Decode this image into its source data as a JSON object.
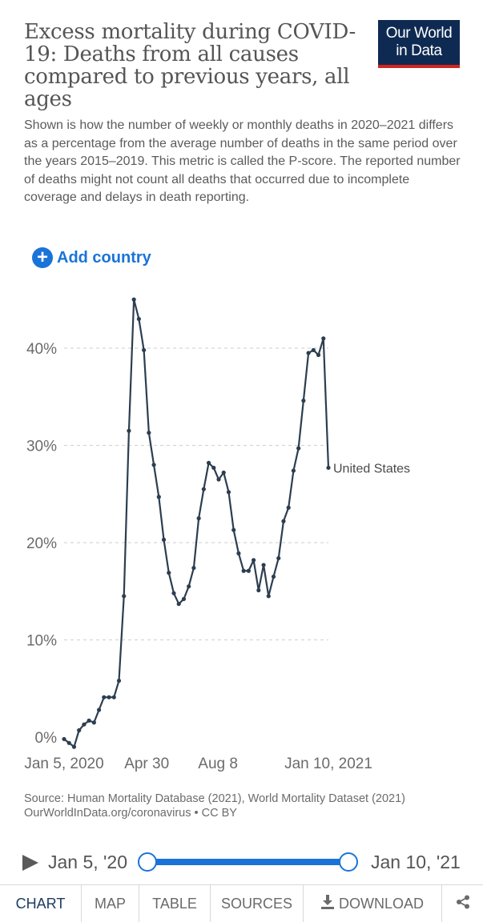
{
  "header": {
    "title": "Excess mortality during COVID-19: Deaths from all causes compared to previous years, all ages",
    "logo_line1": "Our World",
    "logo_line2": "in Data",
    "subtitle": "Shown is how the number of weekly or monthly deaths in 2020–2021 differs as a percentage from the average number of deaths in the same period over the years 2015–2019. This metric is called the P-score. The reported number of deaths might not count all deaths that occurred due to incomplete coverage and delays in death reporting."
  },
  "controls": {
    "add_country_label": "Add country",
    "add_icon": "plus-circle-icon"
  },
  "chart_data": {
    "type": "line",
    "title": "",
    "xlabel": "",
    "ylabel": "",
    "y_tick_labels": [
      "0%",
      "10%",
      "20%",
      "30%",
      "40%"
    ],
    "y_ticks": [
      0,
      10,
      20,
      30,
      40
    ],
    "ylim": [
      0,
      45
    ],
    "x_tick_labels": [
      "Jan 5, 2020",
      "Apr 30",
      "Aug 8",
      "Jan 10, 2021"
    ],
    "x_tick_dates": [
      "2020-01-05",
      "2020-04-30",
      "2020-08-08",
      "2021-01-10"
    ],
    "xlim": [
      "2020-01-05",
      "2021-01-10"
    ],
    "grid": "horizontal dashed",
    "legend": "inline label at line end",
    "series": [
      {
        "name": "United States",
        "color": "#2c3e50",
        "x": [
          "2020-01-05",
          "2020-01-12",
          "2020-01-19",
          "2020-01-26",
          "2020-02-02",
          "2020-02-09",
          "2020-02-16",
          "2020-02-23",
          "2020-03-01",
          "2020-03-08",
          "2020-03-15",
          "2020-03-22",
          "2020-03-29",
          "2020-04-05",
          "2020-04-12",
          "2020-04-19",
          "2020-04-26",
          "2020-05-03",
          "2020-05-10",
          "2020-05-17",
          "2020-05-24",
          "2020-05-31",
          "2020-06-07",
          "2020-06-14",
          "2020-06-21",
          "2020-06-28",
          "2020-07-05",
          "2020-07-12",
          "2020-07-19",
          "2020-07-26",
          "2020-08-02",
          "2020-08-09",
          "2020-08-16",
          "2020-08-23",
          "2020-08-30",
          "2020-09-06",
          "2020-09-13",
          "2020-09-20",
          "2020-09-27",
          "2020-10-04",
          "2020-10-11",
          "2020-10-18",
          "2020-10-25",
          "2020-11-01",
          "2020-11-08",
          "2020-11-15",
          "2020-11-22",
          "2020-11-29",
          "2020-12-06",
          "2020-12-13",
          "2020-12-20",
          "2020-12-27",
          "2021-01-03",
          "2021-01-10"
        ],
        "values": [
          -0.2,
          -0.6,
          -1.0,
          0.7,
          1.3,
          1.7,
          1.5,
          2.8,
          4.1,
          4.1,
          4.1,
          5.8,
          14.5,
          31.5,
          45.0,
          43.0,
          39.8,
          31.3,
          28.0,
          24.7,
          20.3,
          16.9,
          14.8,
          13.7,
          14.2,
          15.5,
          17.4,
          22.5,
          25.5,
          28.2,
          27.7,
          26.5,
          27.2,
          25.2,
          21.3,
          18.9,
          17.1,
          17.1,
          18.2,
          15.1,
          17.7,
          14.5,
          16.5,
          18.4,
          22.2,
          23.6,
          27.4,
          29.7,
          34.6,
          39.5,
          39.8,
          39.3,
          41.0,
          27.7
        ]
      }
    ]
  },
  "footer": {
    "source_line": "Source: Human Mortality Database (2021), World Mortality Dataset (2021)",
    "url_line": "OurWorldInData.org/coronavirus • CC BY"
  },
  "timeline": {
    "start_label": "Jan 5, '20",
    "end_label": "Jan 10, '21",
    "play_icon": "play-icon"
  },
  "tabs": [
    {
      "label": "CHART",
      "active": true
    },
    {
      "label": "MAP"
    },
    {
      "label": "TABLE"
    },
    {
      "label": "SOURCES"
    },
    {
      "label": "DOWNLOAD",
      "icon": "download-icon"
    },
    {
      "label": "",
      "icon": "share-icon"
    }
  ],
  "colors": {
    "accent": "#1a73d8",
    "logo_bg": "#0f2a52",
    "logo_bar": "#ce261e",
    "line": "#2c3e50"
  }
}
